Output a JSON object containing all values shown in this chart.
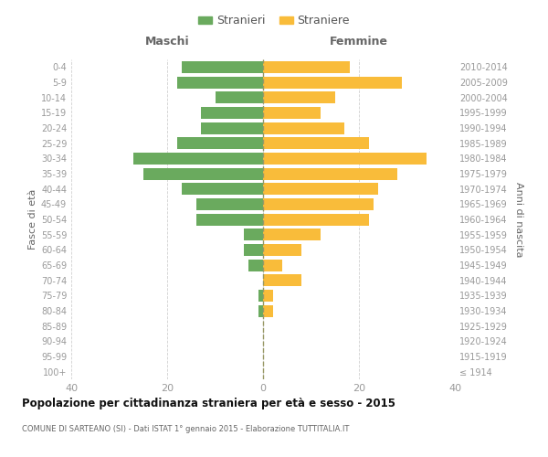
{
  "age_groups": [
    "100+",
    "95-99",
    "90-94",
    "85-89",
    "80-84",
    "75-79",
    "70-74",
    "65-69",
    "60-64",
    "55-59",
    "50-54",
    "45-49",
    "40-44",
    "35-39",
    "30-34",
    "25-29",
    "20-24",
    "15-19",
    "10-14",
    "5-9",
    "0-4"
  ],
  "birth_years": [
    "≤ 1914",
    "1915-1919",
    "1920-1924",
    "1925-1929",
    "1930-1934",
    "1935-1939",
    "1940-1944",
    "1945-1949",
    "1950-1954",
    "1955-1959",
    "1960-1964",
    "1965-1969",
    "1970-1974",
    "1975-1979",
    "1980-1984",
    "1985-1989",
    "1990-1994",
    "1995-1999",
    "2000-2004",
    "2005-2009",
    "2010-2014"
  ],
  "maschi": [
    0,
    0,
    0,
    0,
    1,
    1,
    0,
    3,
    4,
    4,
    14,
    14,
    17,
    25,
    27,
    18,
    13,
    13,
    10,
    18,
    17
  ],
  "femmine": [
    0,
    0,
    0,
    0,
    2,
    2,
    8,
    4,
    8,
    12,
    22,
    23,
    24,
    28,
    34,
    22,
    17,
    12,
    15,
    29,
    18
  ],
  "color_maschi": "#6aaa5e",
  "color_femmine": "#f9bc3a",
  "title": "Popolazione per cittadinanza straniera per età e sesso - 2015",
  "subtitle": "COMUNE DI SARTEANO (SI) - Dati ISTAT 1° gennaio 2015 - Elaborazione TUTTITALIA.IT",
  "xlabel_left": "Maschi",
  "xlabel_right": "Femmine",
  "ylabel_left": "Fasce di età",
  "ylabel_right": "Anni di nascita",
  "xlim": 40,
  "legend_stranieri": "Stranieri",
  "legend_straniere": "Straniere",
  "background_color": "#ffffff",
  "grid_color": "#d0d0d0"
}
